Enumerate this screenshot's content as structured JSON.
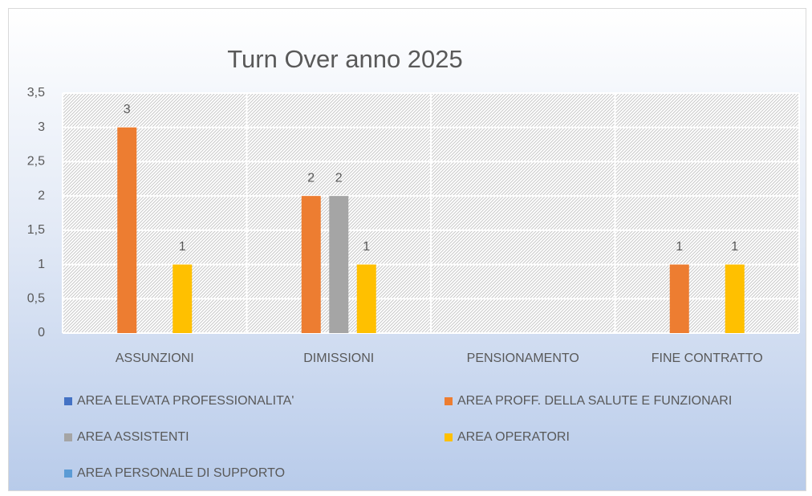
{
  "chart_data": {
    "type": "bar",
    "title": "Turn Over anno 2025",
    "categories": [
      "ASSUNZIONI",
      "DIMISSIONI",
      "PENSIONAMENTO",
      "FINE CONTRATTO"
    ],
    "series": [
      {
        "name": "AREA ELEVATA PROFESSIONALITA'",
        "color": "#4472c4",
        "values": [
          null,
          null,
          null,
          null
        ]
      },
      {
        "name": "AREA PROFF. DELLA SALUTE E FUNZIONARI",
        "color": "#ed7d31",
        "values": [
          3,
          2,
          null,
          1
        ]
      },
      {
        "name": "AREA ASSISTENTI",
        "color": "#a5a5a5",
        "values": [
          null,
          2,
          null,
          null
        ]
      },
      {
        "name": "AREA OPERATORI",
        "color": "#ffc000",
        "values": [
          1,
          1,
          null,
          1
        ]
      },
      {
        "name": "AREA PERSONALE DI SUPPORTO",
        "color": "#5b9bd5",
        "values": [
          null,
          null,
          null,
          null
        ]
      }
    ],
    "ylim": [
      0,
      3.5
    ],
    "yticks": [
      0,
      {
        "value": 0.5,
        "label": "0,5"
      },
      1,
      {
        "value": 1.5,
        "label": "1,5"
      },
      2,
      {
        "value": 2.5,
        "label": "2,5"
      },
      3,
      {
        "value": 3.5,
        "label": "3,5"
      }
    ],
    "grid": true,
    "legend": "bottom"
  }
}
